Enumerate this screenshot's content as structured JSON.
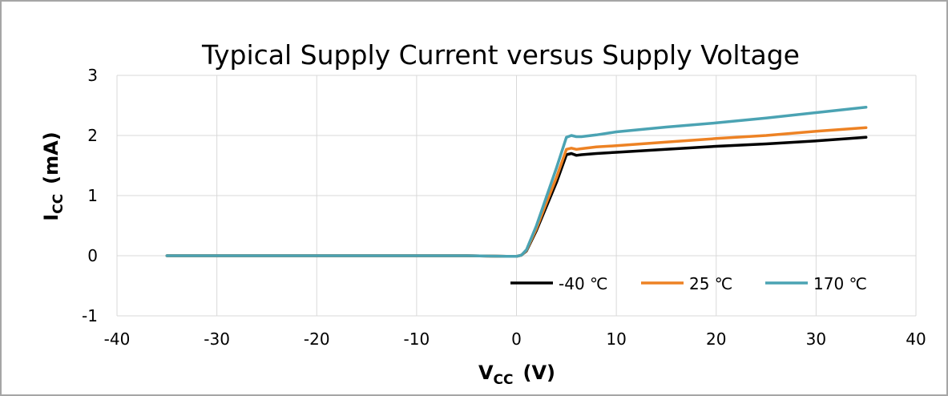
{
  "chart_data": {
    "type": "line",
    "title": "Typical Supply Current versus Supply Voltage",
    "xlabel": {
      "main": "V",
      "sub": "CC",
      "unit": "(V)"
    },
    "ylabel": {
      "main": "I",
      "sub": "CC",
      "unit": "(mA)"
    },
    "xlim": [
      -40,
      40
    ],
    "ylim": [
      -1,
      3
    ],
    "xticks": [
      -40,
      -30,
      -20,
      -10,
      0,
      10,
      20,
      30,
      40
    ],
    "yticks": [
      -1,
      0,
      1,
      2,
      3
    ],
    "grid": true,
    "legend_position": "bottom-right",
    "series": [
      {
        "name": "-40 ℃",
        "color": "#000000",
        "x": [
          -35,
          -30,
          -20,
          -10,
          -5,
          -1,
          0,
          0.5,
          1,
          2,
          3,
          4,
          5,
          5.5,
          6,
          6.5,
          8,
          10,
          15,
          20,
          25,
          30,
          35
        ],
        "y": [
          0,
          0,
          0,
          0,
          0,
          -0.01,
          -0.01,
          0.01,
          0.08,
          0.42,
          0.82,
          1.22,
          1.68,
          1.7,
          1.67,
          1.68,
          1.7,
          1.72,
          1.77,
          1.82,
          1.86,
          1.91,
          1.97
        ]
      },
      {
        "name": "25 ℃",
        "color": "#ed8224",
        "x": [
          -35,
          -30,
          -20,
          -10,
          -5,
          -1,
          0,
          0.5,
          1,
          2,
          3,
          4,
          5,
          5.5,
          6,
          6.5,
          8,
          10,
          15,
          20,
          25,
          30,
          35
        ],
        "y": [
          0,
          0,
          0,
          0,
          0,
          -0.01,
          -0.01,
          0.01,
          0.09,
          0.45,
          0.88,
          1.3,
          1.77,
          1.79,
          1.77,
          1.78,
          1.81,
          1.83,
          1.89,
          1.95,
          2.0,
          2.07,
          2.13
        ]
      },
      {
        "name": "170 ℃",
        "color": "#4ba3b3",
        "x": [
          -35,
          -30,
          -20,
          -10,
          -5,
          -1,
          0,
          0.5,
          1,
          2,
          3,
          4,
          5,
          5.5,
          6,
          6.5,
          8,
          10,
          15,
          20,
          25,
          30,
          35
        ],
        "y": [
          0,
          0,
          0,
          0,
          0,
          -0.01,
          -0.01,
          0.01,
          0.1,
          0.5,
          0.98,
          1.46,
          1.97,
          2.0,
          1.98,
          1.98,
          2.01,
          2.06,
          2.14,
          2.21,
          2.29,
          2.38,
          2.47
        ]
      }
    ]
  }
}
